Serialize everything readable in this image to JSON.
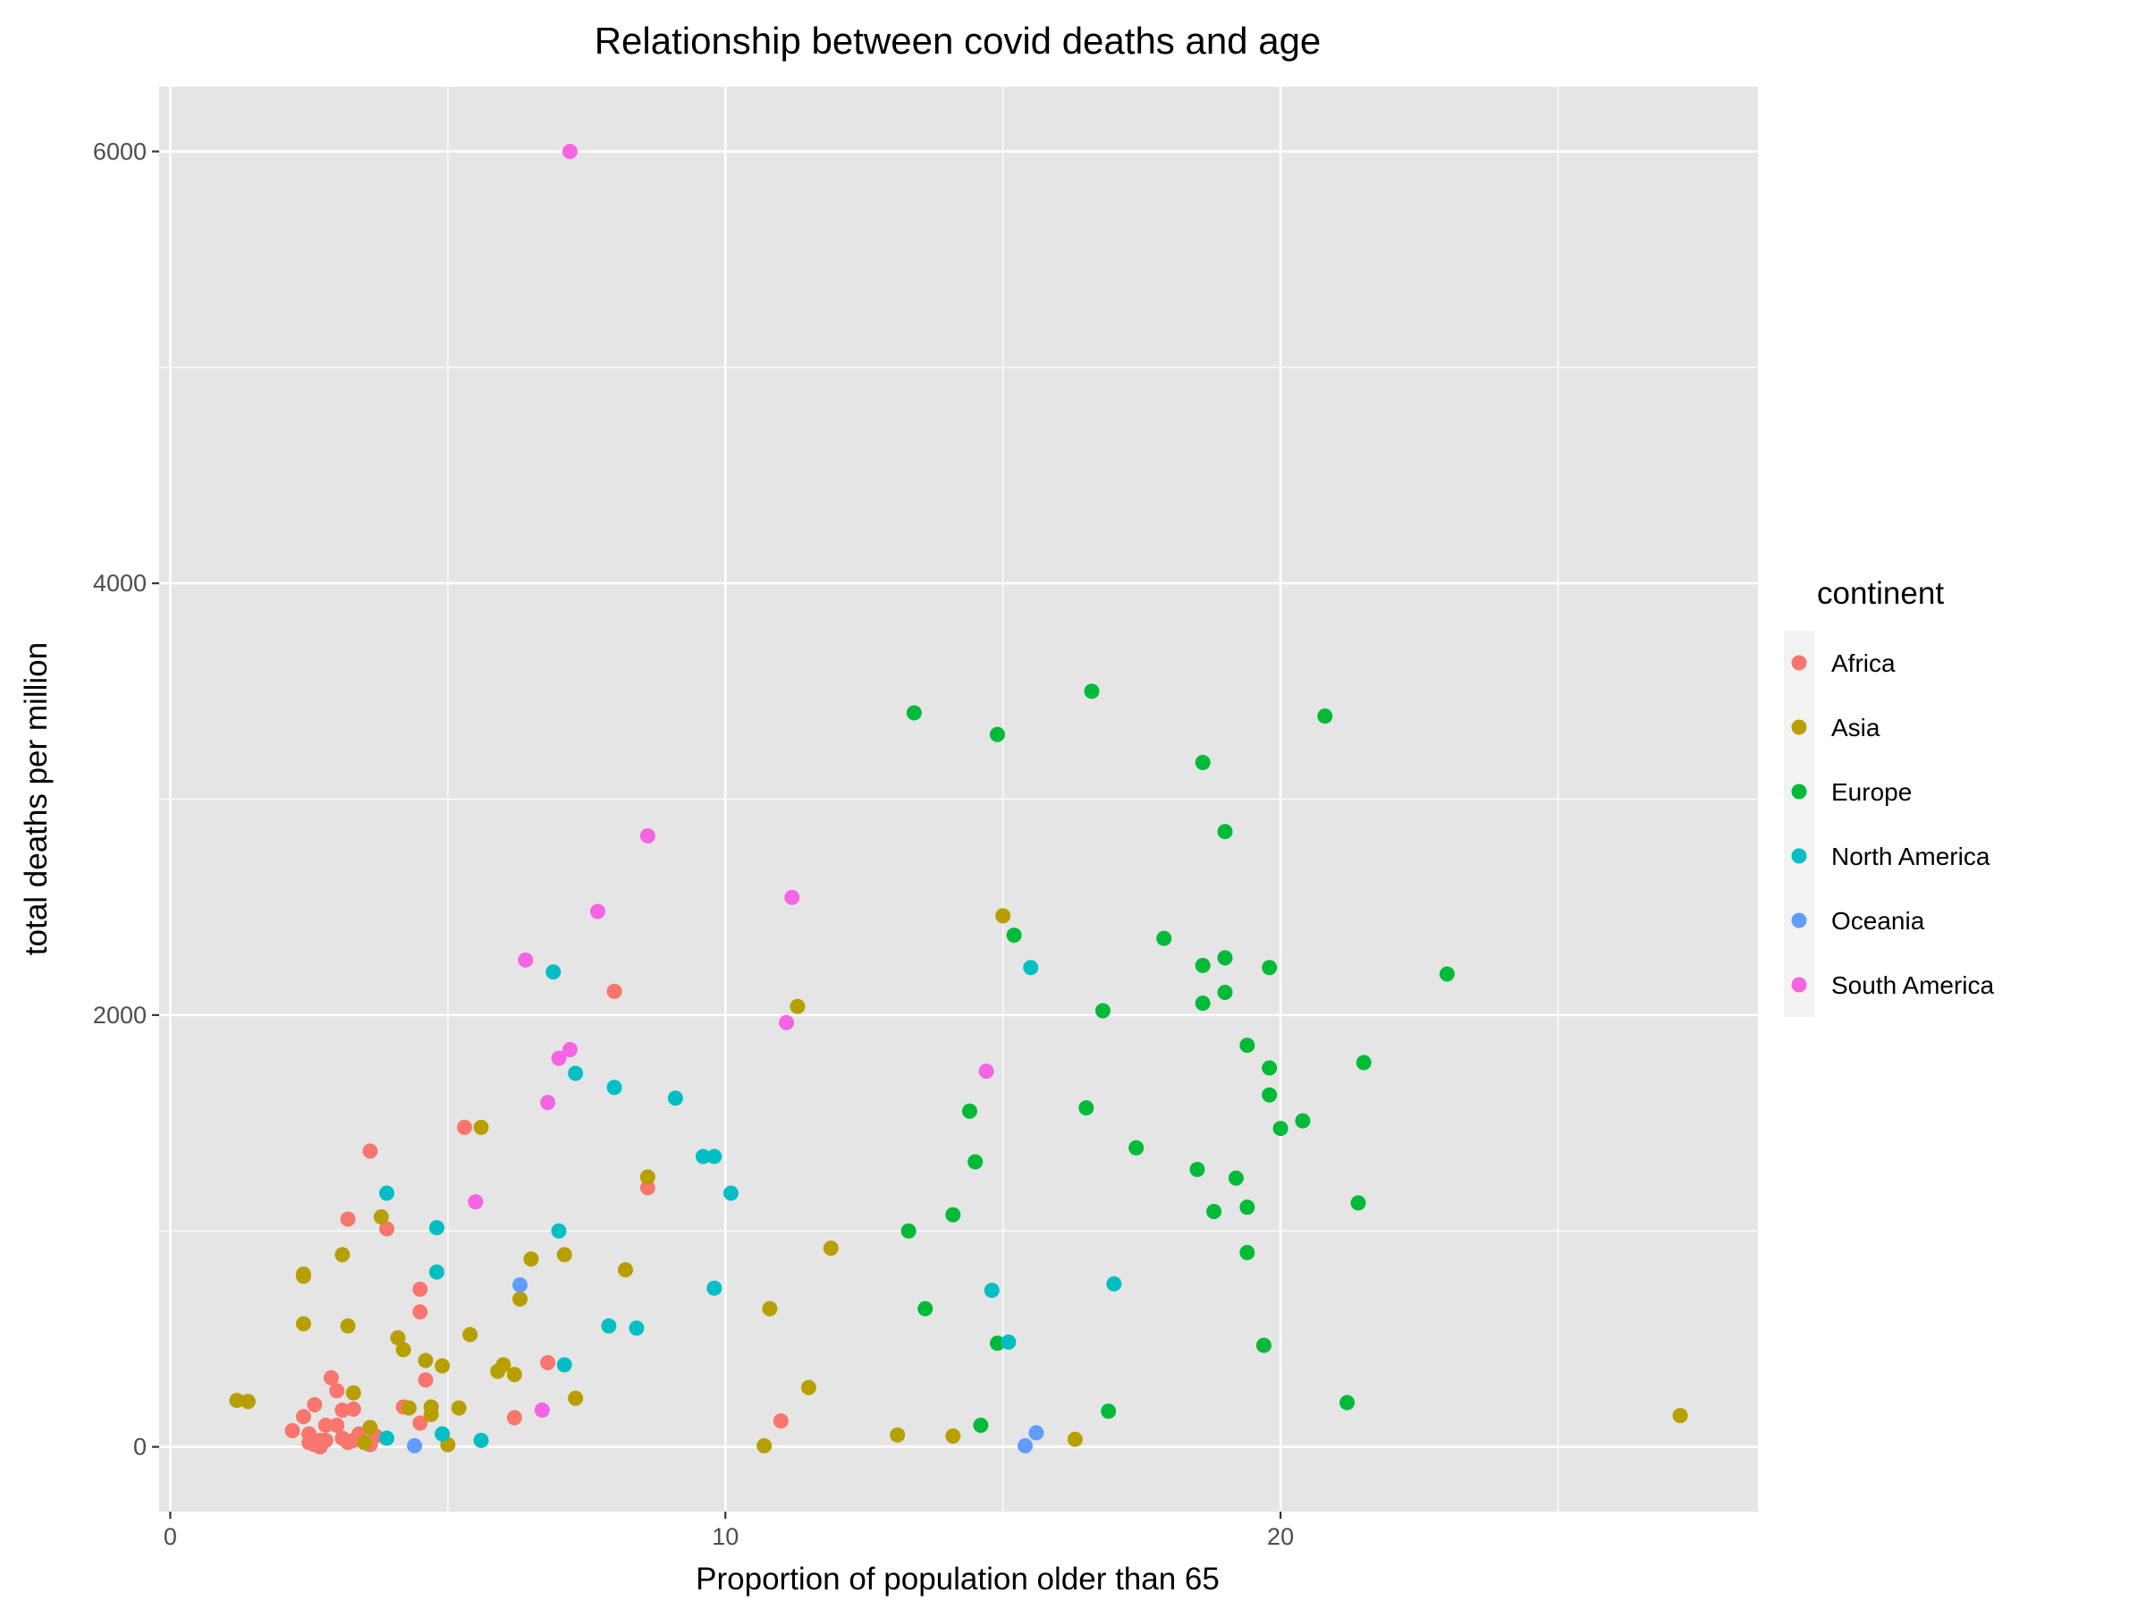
{
  "chart_data": {
    "type": "scatter",
    "title": "Relationship between covid deaths and age",
    "xlabel": "Proportion of population older than 65",
    "ylabel": "total deaths per million",
    "xlim": [
      -0.2,
      28.6
    ],
    "ylim": [
      -300,
      6300
    ],
    "x_ticks": [
      0,
      10,
      20
    ],
    "x_minor_ticks": [
      5,
      15,
      25
    ],
    "y_ticks": [
      0,
      2000,
      4000,
      6000
    ],
    "y_minor_ticks": [
      1000,
      3000,
      5000
    ],
    "grid": true,
    "background": "#e5e5e5",
    "legend": {
      "title": "continent",
      "position": "right"
    },
    "series": [
      {
        "name": "Africa",
        "color": "#f8766d",
        "points": [
          [
            2.2,
            75
          ],
          [
            2.4,
            140
          ],
          [
            2.5,
            20
          ],
          [
            2.5,
            60
          ],
          [
            2.6,
            195
          ],
          [
            2.6,
            10
          ],
          [
            2.7,
            30
          ],
          [
            2.7,
            0
          ],
          [
            2.8,
            100
          ],
          [
            2.8,
            30
          ],
          [
            2.9,
            320
          ],
          [
            3.0,
            260
          ],
          [
            3.0,
            100
          ],
          [
            3.1,
            170
          ],
          [
            3.1,
            40
          ],
          [
            3.2,
            20
          ],
          [
            3.3,
            175
          ],
          [
            3.3,
            30
          ],
          [
            3.4,
            60
          ],
          [
            3.5,
            20
          ],
          [
            3.6,
            10
          ],
          [
            3.7,
            50
          ],
          [
            3.2,
            1055
          ],
          [
            3.6,
            1370
          ],
          [
            3.9,
            1010
          ],
          [
            4.2,
            185
          ],
          [
            4.5,
            730
          ],
          [
            4.5,
            625
          ],
          [
            4.6,
            310
          ],
          [
            4.5,
            110
          ],
          [
            5.3,
            1480
          ],
          [
            6.2,
            135
          ],
          [
            6.8,
            390
          ],
          [
            8.0,
            2110
          ],
          [
            8.6,
            1200
          ],
          [
            11.0,
            120
          ]
        ]
      },
      {
        "name": "Asia",
        "color": "#b79f00",
        "points": [
          [
            1.2,
            215
          ],
          [
            1.4,
            210
          ],
          [
            2.4,
            790
          ],
          [
            2.4,
            800
          ],
          [
            2.4,
            570
          ],
          [
            3.1,
            890
          ],
          [
            3.2,
            560
          ],
          [
            3.3,
            250
          ],
          [
            3.5,
            20
          ],
          [
            3.6,
            90
          ],
          [
            3.8,
            1065
          ],
          [
            4.1,
            505
          ],
          [
            4.2,
            450
          ],
          [
            4.3,
            180
          ],
          [
            4.6,
            400
          ],
          [
            4.7,
            150
          ],
          [
            4.7,
            185
          ],
          [
            4.9,
            375
          ],
          [
            5.0,
            10
          ],
          [
            5.2,
            180
          ],
          [
            5.4,
            520
          ],
          [
            5.6,
            1480
          ],
          [
            5.9,
            350
          ],
          [
            6.0,
            380
          ],
          [
            6.2,
            335
          ],
          [
            6.3,
            685
          ],
          [
            6.5,
            870
          ],
          [
            7.1,
            890
          ],
          [
            7.3,
            225
          ],
          [
            8.2,
            820
          ],
          [
            8.6,
            1250
          ],
          [
            10.7,
            5
          ],
          [
            10.8,
            640
          ],
          [
            11.3,
            2040
          ],
          [
            11.5,
            275
          ],
          [
            11.9,
            920
          ],
          [
            13.1,
            55
          ],
          [
            14.1,
            50
          ],
          [
            15.0,
            2460
          ],
          [
            16.3,
            35
          ],
          [
            27.2,
            145
          ]
        ]
      },
      {
        "name": "Europe",
        "color": "#00ba38",
        "points": [
          [
            13.3,
            1000
          ],
          [
            13.4,
            3400
          ],
          [
            13.6,
            640
          ],
          [
            14.1,
            1075
          ],
          [
            14.4,
            1555
          ],
          [
            14.5,
            1320
          ],
          [
            14.6,
            100
          ],
          [
            14.9,
            480
          ],
          [
            14.9,
            3300
          ],
          [
            15.2,
            2370
          ],
          [
            16.5,
            1570
          ],
          [
            16.6,
            3500
          ],
          [
            16.8,
            2020
          ],
          [
            16.9,
            165
          ],
          [
            17.4,
            1385
          ],
          [
            17.9,
            2355
          ],
          [
            18.5,
            1285
          ],
          [
            18.6,
            2055
          ],
          [
            18.6,
            2230
          ],
          [
            18.6,
            3170
          ],
          [
            18.8,
            1090
          ],
          [
            19.0,
            2850
          ],
          [
            19.0,
            2105
          ],
          [
            19.0,
            2265
          ],
          [
            19.2,
            1245
          ],
          [
            19.4,
            1860
          ],
          [
            19.4,
            900
          ],
          [
            19.4,
            1110
          ],
          [
            19.7,
            470
          ],
          [
            19.8,
            1755
          ],
          [
            19.8,
            2220
          ],
          [
            19.8,
            1630
          ],
          [
            20.0,
            1475
          ],
          [
            20.4,
            1510
          ],
          [
            20.8,
            3385
          ],
          [
            21.2,
            205
          ],
          [
            21.4,
            1130
          ],
          [
            21.5,
            1780
          ],
          [
            23.0,
            2190
          ]
        ]
      },
      {
        "name": "North America",
        "color": "#00bfc4",
        "points": [
          [
            3.9,
            40
          ],
          [
            3.9,
            1175
          ],
          [
            4.8,
            1015
          ],
          [
            4.8,
            810
          ],
          [
            4.9,
            60
          ],
          [
            5.6,
            30
          ],
          [
            6.9,
            2200
          ],
          [
            7.0,
            1000
          ],
          [
            7.1,
            380
          ],
          [
            7.3,
            1730
          ],
          [
            7.9,
            560
          ],
          [
            8.0,
            1665
          ],
          [
            8.4,
            550
          ],
          [
            9.1,
            1615
          ],
          [
            9.6,
            1345
          ],
          [
            9.8,
            1345
          ],
          [
            9.8,
            735
          ],
          [
            10.1,
            1175
          ],
          [
            14.8,
            725
          ],
          [
            15.1,
            485
          ],
          [
            15.5,
            2220
          ],
          [
            17.0,
            755
          ]
        ]
      },
      {
        "name": "Oceania",
        "color": "#619cff",
        "points": [
          [
            4.4,
            5
          ],
          [
            6.3,
            750
          ],
          [
            15.4,
            5
          ],
          [
            15.6,
            65
          ]
        ]
      },
      {
        "name": "South America",
        "color": "#f564e3",
        "points": [
          [
            5.5,
            1135
          ],
          [
            6.4,
            2255
          ],
          [
            6.7,
            170
          ],
          [
            6.8,
            1595
          ],
          [
            7.0,
            1800
          ],
          [
            7.2,
            1840
          ],
          [
            7.2,
            6000
          ],
          [
            7.7,
            2480
          ],
          [
            8.6,
            2830
          ],
          [
            11.1,
            1965
          ],
          [
            11.2,
            2545
          ],
          [
            14.7,
            1740
          ]
        ]
      }
    ]
  }
}
